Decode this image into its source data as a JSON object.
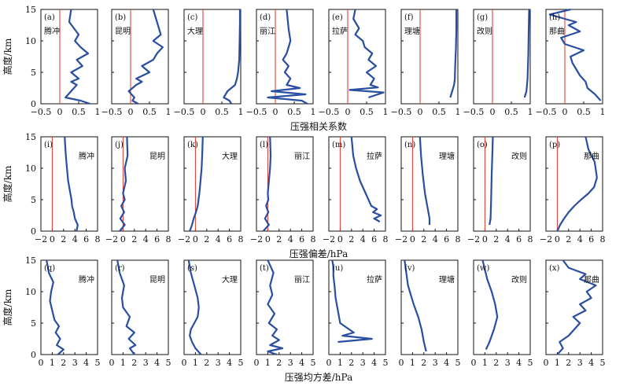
{
  "colors": {
    "line": "#2a4ea0",
    "ref": "#e0352b",
    "axis": "#111111"
  },
  "rows": [
    {
      "xlabel": "压强相关系数",
      "ylabel": "高度/km",
      "xlim": [
        -0.5,
        1
      ],
      "ref": 0,
      "xticks": [
        "−0.5",
        "0",
        "0.5",
        "1"
      ],
      "xtick_vals": [
        -0.5,
        0,
        0.5,
        1
      ]
    },
    {
      "xlabel": "压强偏差/hPa",
      "ylabel": "高度/km",
      "xlim": [
        -2,
        8
      ],
      "ref": 0,
      "xticks": [
        "−2",
        "0",
        "2",
        "4",
        "6",
        "8"
      ],
      "xtick_vals": [
        -2,
        0,
        2,
        4,
        6,
        8
      ]
    },
    {
      "xlabel": "压强均方差/hPa",
      "ylabel": "高度/km",
      "xlim": [
        0,
        5
      ],
      "ref": null,
      "xticks": [
        "0",
        "1",
        "2",
        "3",
        "4",
        "5"
      ],
      "xtick_vals": [
        0,
        1,
        2,
        3,
        4,
        5
      ]
    }
  ],
  "yticks": [
    "0",
    "5",
    "10",
    "15"
  ],
  "ylim": [
    0,
    15
  ],
  "chart_data": [
    {
      "type": "line",
      "panel": "(a)",
      "station": "腾冲",
      "row": 0,
      "x": [
        0.8,
        0.55,
        0.15,
        0.3,
        0.45,
        0.3,
        0.5,
        0.3,
        0.6,
        0.45,
        0.75,
        0.55,
        0.4,
        0.5,
        0.25,
        0.3
      ],
      "y": [
        0,
        0.5,
        1,
        2,
        3,
        3.5,
        4,
        5,
        6,
        7,
        8,
        9,
        10,
        11,
        13,
        15
      ]
    },
    {
      "type": "line",
      "panel": "(b)",
      "station": "昆明",
      "row": 0,
      "x": [
        0.2,
        0.05,
        0.1,
        -0.05,
        0.15,
        0.3,
        0.15,
        0.5,
        0.3,
        0.6,
        0.7,
        0.85,
        0.6,
        0.8,
        0.7,
        0.6
      ],
      "y": [
        0,
        0.5,
        1,
        2,
        3,
        3.5,
        4,
        5,
        6,
        7,
        8,
        9,
        10,
        11,
        13,
        15
      ]
    },
    {
      "type": "line",
      "panel": "(c)",
      "station": "大理",
      "row": 0,
      "x": [
        0.75,
        0.7,
        0.55,
        0.65,
        0.85,
        0.9,
        0.93,
        0.96,
        0.97,
        0.98,
        0.98
      ],
      "y": [
        0,
        0.5,
        1,
        2,
        3,
        4,
        5,
        7,
        10,
        13,
        15
      ]
    },
    {
      "type": "line",
      "panel": "(d)",
      "station": "丽江",
      "row": 0,
      "x": [
        0.85,
        0.7,
        -0.2,
        0.8,
        -0.1,
        0.65,
        0.3,
        0.4,
        0.25,
        0.35,
        0.2,
        0.3,
        0.35,
        0.4,
        0.35,
        0.3
      ],
      "y": [
        0,
        0.5,
        1,
        1.5,
        2,
        2.5,
        3,
        4,
        5,
        6,
        7,
        8,
        9,
        10,
        12,
        15
      ]
    },
    {
      "type": "line",
      "panel": "(e)",
      "station": "拉萨",
      "row": 0,
      "x": [
        0.55,
        0.95,
        0.05,
        0.8,
        0.6,
        0.7,
        0.5,
        0.75,
        0.55,
        0.65,
        0.45,
        0.4,
        0.2,
        0.3,
        0.15,
        0.2
      ],
      "y": [
        1,
        1.8,
        2.2,
        2.6,
        3,
        4,
        5,
        6,
        7,
        8,
        9,
        10,
        11,
        12,
        13.5,
        15
      ]
    },
    {
      "type": "line",
      "panel": "(f)",
      "station": "理塘",
      "row": 0,
      "x": [
        0.8,
        0.85,
        0.9,
        0.92,
        0.93,
        0.95,
        0.96,
        0.96
      ],
      "y": [
        1,
        2,
        3,
        4,
        6,
        9,
        12,
        15
      ]
    },
    {
      "type": "line",
      "panel": "(g)",
      "station": "改则",
      "row": 0,
      "x": [
        0.85,
        0.9,
        0.93,
        0.95,
        0.96,
        0.97
      ],
      "y": [
        1,
        2,
        4,
        8,
        12,
        15
      ]
    },
    {
      "type": "line",
      "panel": "(h)",
      "station": "那曲",
      "row": 0,
      "x": [
        0.95,
        0.8,
        0.6,
        0.55,
        0.4,
        0.3,
        0.2,
        0.15,
        0.5,
        0.0,
        -0.1,
        0.4,
        0.1,
        0.3,
        0.0,
        -0.4,
        0.15
      ],
      "y": [
        0.5,
        1.5,
        2.5,
        3.5,
        4.5,
        5.5,
        6.5,
        7.5,
        8.5,
        9.5,
        10.5,
        11.5,
        12.5,
        13,
        13.5,
        14.2,
        15
      ]
    },
    {
      "type": "line",
      "panel": "(i)",
      "station": "腾冲",
      "row": 1,
      "x": [
        4.3,
        4.5,
        4.0,
        3.8,
        3.5,
        3.4,
        3.2,
        2.8,
        2.6,
        2.4,
        2.2
      ],
      "y": [
        0,
        1,
        2,
        3,
        4,
        5,
        6,
        8,
        10,
        12,
        15
      ]
    },
    {
      "type": "line",
      "panel": "(j)",
      "station": "昆明",
      "row": 1,
      "x": [
        -0.6,
        0.3,
        -0.5,
        0.2,
        -0.3,
        0.3,
        0.0,
        0.5,
        0.3,
        0.8,
        0.7
      ],
      "y": [
        0,
        1,
        2,
        3,
        4,
        5,
        6,
        8,
        10,
        12,
        15
      ]
    },
    {
      "type": "line",
      "panel": "(k)",
      "station": "大理",
      "row": 1,
      "x": [
        -1.0,
        -0.6,
        -0.3,
        0.1,
        0.4,
        0.7,
        0.9,
        1.1,
        1.2,
        1.3
      ],
      "y": [
        0,
        1,
        2,
        3,
        4,
        6,
        8,
        10,
        12,
        15
      ]
    },
    {
      "type": "line",
      "panel": "(l)",
      "station": "丽江",
      "row": 1,
      "x": [
        -0.8,
        0.2,
        -0.5,
        0.1,
        -0.3,
        0.1,
        0.0,
        0.2,
        0.4,
        0.5,
        0.4
      ],
      "y": [
        0,
        1,
        2,
        3,
        4,
        5,
        6,
        8,
        10,
        12,
        15
      ]
    },
    {
      "type": "line",
      "panel": "(m)",
      "station": "拉萨",
      "row": 1,
      "x": [
        7.0,
        6.0,
        7.2,
        5.8,
        6.5,
        5.5,
        4.5,
        3.5,
        2.8,
        2.3,
        2.0
      ],
      "y": [
        1.5,
        2,
        2.5,
        3,
        3.5,
        4,
        6,
        8,
        10,
        12,
        15
      ]
    },
    {
      "type": "line",
      "panel": "(n)",
      "station": "理塘",
      "row": 1,
      "x": [
        3.0,
        3.0,
        2.6,
        2.2,
        1.8,
        1.5,
        1.3
      ],
      "y": [
        1,
        2,
        4,
        6,
        9,
        12,
        15
      ]
    },
    {
      "type": "line",
      "panel": "(o)",
      "station": "改则",
      "row": 1,
      "x": [
        0.8,
        1.0,
        1.1,
        1.2,
        1.3,
        1.4
      ],
      "y": [
        1,
        2,
        5,
        9,
        12,
        15
      ]
    },
    {
      "type": "line",
      "panel": "(p)",
      "station": "那曲",
      "row": 1,
      "x": [
        0.0,
        0.5,
        1.2,
        2.0,
        3.0,
        4.2,
        5.5,
        6.5,
        7.0,
        6.6,
        5.5,
        5.0
      ],
      "y": [
        0,
        1,
        2,
        3,
        4,
        5,
        6,
        7,
        8.5,
        11,
        13,
        15
      ]
    },
    {
      "type": "line",
      "panel": "(q)",
      "station": "腾冲",
      "row": 2,
      "x": [
        1.5,
        2.0,
        1.4,
        1.7,
        1.3,
        1.6,
        1.2,
        1.0,
        0.8,
        0.9,
        1.1,
        0.7,
        0.5
      ],
      "y": [
        0,
        0.8,
        1.5,
        2.5,
        3.5,
        4.5,
        5.5,
        7,
        8.5,
        10,
        11.5,
        13,
        15
      ]
    },
    {
      "type": "line",
      "panel": "(r)",
      "station": "昆明",
      "row": 2,
      "x": [
        2.0,
        1.6,
        2.1,
        1.5,
        2.0,
        1.3,
        1.6,
        1.0,
        0.9,
        1.1,
        0.7,
        0.5
      ],
      "y": [
        0,
        1,
        1.5,
        2.5,
        3.5,
        4.5,
        6,
        7.5,
        9,
        11,
        13,
        15
      ]
    },
    {
      "type": "line",
      "panel": "(s)",
      "station": "大理",
      "row": 2,
      "x": [
        1.5,
        1.0,
        0.7,
        0.5,
        0.6,
        0.9,
        1.2,
        1.3,
        1.2,
        0.9,
        0.6,
        0.4
      ],
      "y": [
        0,
        1,
        2,
        3,
        4,
        5,
        6,
        7.5,
        9,
        11,
        13,
        15
      ]
    },
    {
      "type": "line",
      "panel": "(t)",
      "station": "丽江",
      "row": 2,
      "x": [
        1.8,
        1.0,
        2.3,
        1.2,
        2.0,
        1.4,
        1.8,
        1.1,
        1.6,
        1.0,
        1.4,
        1.2,
        1.5,
        1.0
      ],
      "y": [
        0,
        0.5,
        1,
        1.5,
        2.3,
        3,
        4,
        5,
        6.5,
        8,
        9.5,
        11,
        13,
        15
      ]
    },
    {
      "type": "line",
      "panel": "(u)",
      "station": "拉萨",
      "row": 2,
      "x": [
        0.8,
        3.8,
        1.2,
        2.2,
        1.0,
        0.8,
        0.6,
        0.5,
        0.4,
        0.4,
        0.3
      ],
      "y": [
        2,
        2.5,
        3,
        3.5,
        5,
        7,
        9,
        11,
        12.5,
        14,
        15
      ]
    },
    {
      "type": "line",
      "panel": "(v)",
      "station": "理塘",
      "row": 2,
      "x": [
        2.2,
        2.0,
        1.8,
        1.5,
        1.1,
        0.6,
        0.3
      ],
      "y": [
        0.5,
        2,
        4,
        6,
        8,
        11,
        15
      ]
    },
    {
      "type": "line",
      "panel": "(w)",
      "station": "改则",
      "row": 2,
      "x": [
        1.1,
        1.4,
        1.8,
        2.1,
        1.9,
        1.6,
        1.2,
        0.8
      ],
      "y": [
        0.8,
        2,
        4,
        6,
        8,
        10,
        12,
        15
      ]
    },
    {
      "type": "line",
      "panel": "(x)",
      "station": "那曲",
      "row": 2,
      "x": [
        1.0,
        1.5,
        1.2,
        2.0,
        2.5,
        3.0,
        2.4,
        3.5,
        3.0,
        4.0,
        3.6,
        4.4,
        3.0,
        3.5,
        2.0,
        1.5
      ],
      "y": [
        0,
        1,
        2,
        3,
        4,
        5,
        6,
        7,
        8,
        9,
        10,
        11,
        12,
        12.8,
        13.8,
        15
      ]
    }
  ]
}
